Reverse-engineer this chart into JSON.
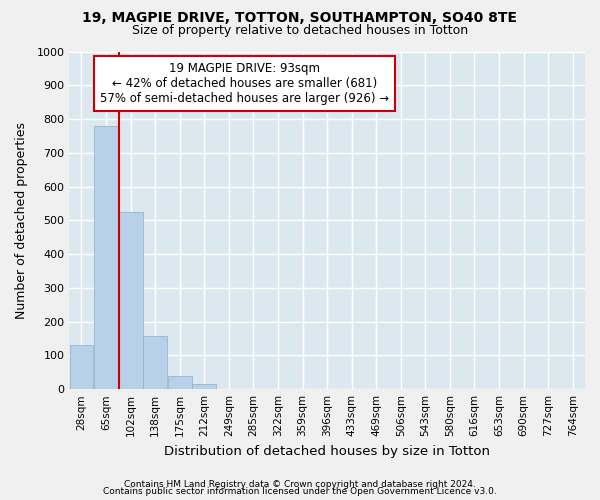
{
  "title1": "19, MAGPIE DRIVE, TOTTON, SOUTHAMPTON, SO40 8TE",
  "title2": "Size of property relative to detached houses in Totton",
  "xlabel": "Distribution of detached houses by size in Totton",
  "ylabel": "Number of detached properties",
  "categories": [
    "28sqm",
    "65sqm",
    "102sqm",
    "138sqm",
    "175sqm",
    "212sqm",
    "249sqm",
    "285sqm",
    "322sqm",
    "359sqm",
    "396sqm",
    "433sqm",
    "469sqm",
    "506sqm",
    "543sqm",
    "580sqm",
    "616sqm",
    "653sqm",
    "690sqm",
    "727sqm",
    "764sqm"
  ],
  "values": [
    130,
    780,
    525,
    158,
    40,
    15,
    0,
    0,
    0,
    0,
    0,
    0,
    0,
    0,
    0,
    0,
    0,
    0,
    0,
    0,
    0
  ],
  "bar_color": "#b8d0e8",
  "bar_edge_color": "#8ab0cc",
  "vline_color": "#cc0000",
  "ylim": [
    0,
    1000
  ],
  "yticks": [
    0,
    100,
    200,
    300,
    400,
    500,
    600,
    700,
    800,
    900,
    1000
  ],
  "annotation_line1": "19 MAGPIE DRIVE: 93sqm",
  "annotation_line2": "← 42% of detached houses are smaller (681)",
  "annotation_line3": "57% of semi-detached houses are larger (926) →",
  "annotation_box_color": "#ffffff",
  "annotation_border_color": "#cc0000",
  "footnote1": "Contains HM Land Registry data © Crown copyright and database right 2024.",
  "footnote2": "Contains public sector information licensed under the Open Government Licence v3.0.",
  "background_color": "#dce8f0",
  "grid_color": "#ffffff",
  "vline_index": 2
}
